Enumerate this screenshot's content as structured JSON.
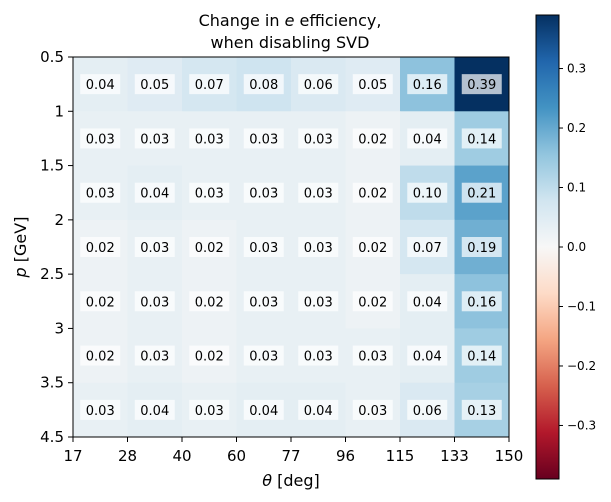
{
  "chart_data": {
    "type": "heatmap",
    "title_lines": [
      "Change in ",
      "e",
      " efficiency,",
      "when disabling SVD"
    ],
    "xlabel_sym": "θ",
    "xlabel_unit": " [deg]",
    "ylabel_sym": "p",
    "ylabel_unit": " [GeV]",
    "x_edges": [
      "17",
      "28",
      "40",
      "60",
      "77",
      "96",
      "115",
      "133",
      "150"
    ],
    "y_edges": [
      "0.5",
      "1",
      "1.5",
      "2",
      "2.5",
      "3",
      "3.5",
      "4.5"
    ],
    "values": [
      [
        0.04,
        0.05,
        0.07,
        0.08,
        0.06,
        0.05,
        0.16,
        0.39
      ],
      [
        0.03,
        0.03,
        0.03,
        0.03,
        0.03,
        0.02,
        0.04,
        0.14
      ],
      [
        0.03,
        0.04,
        0.03,
        0.03,
        0.03,
        0.02,
        0.1,
        0.21
      ],
      [
        0.02,
        0.03,
        0.02,
        0.03,
        0.03,
        0.02,
        0.07,
        0.19
      ],
      [
        0.02,
        0.03,
        0.02,
        0.03,
        0.03,
        0.02,
        0.04,
        0.16
      ],
      [
        0.02,
        0.03,
        0.02,
        0.03,
        0.03,
        0.03,
        0.04,
        0.14
      ],
      [
        0.03,
        0.04,
        0.03,
        0.04,
        0.04,
        0.03,
        0.06,
        0.13
      ]
    ],
    "colorbar": {
      "colormap": "RdBu",
      "vmin": -0.39,
      "vmax": 0.39,
      "ticks": [
        "−0.3",
        "−0.2",
        "−0.1",
        "0.0",
        "0.1",
        "0.2",
        "0.3"
      ],
      "tick_values": [
        -0.3,
        -0.2,
        -0.1,
        0.0,
        0.1,
        0.2,
        0.3
      ]
    },
    "grid": false
  }
}
